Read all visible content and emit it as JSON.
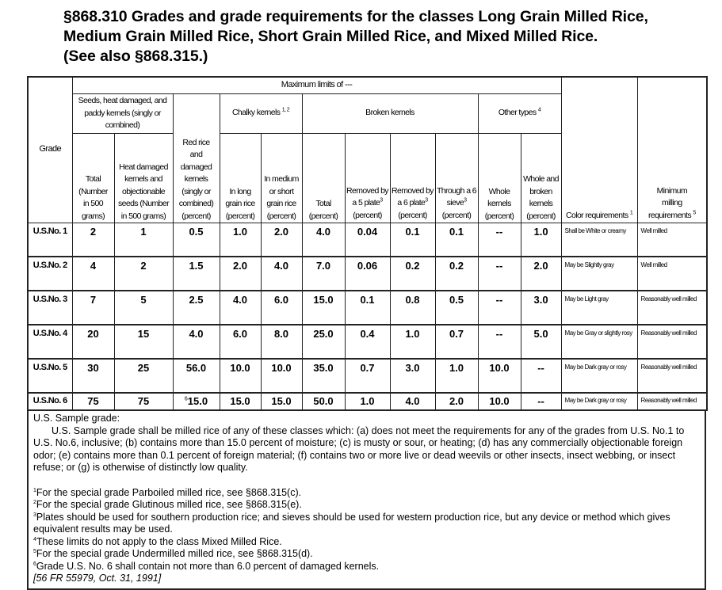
{
  "title": {
    "lines": [
      "§868.310 Grades and grade requirements for the classes Long Grain Milled Rice,",
      "Medium Grain Milled Rice, Short Grain Milled Rice, and Mixed Milled Rice.",
      "(See also §868.315.)"
    ]
  },
  "table": {
    "grade_header": "Grade",
    "max_limits_header": "Maximum limits of ---",
    "color_header": {
      "text": "Color requirements",
      "sup": "1"
    },
    "milling_header": {
      "text": "Minimum milling requirements",
      "sup": "5"
    },
    "groups": {
      "seeds": "Seeds, heat damaged, and paddy kernels (singly or combined)",
      "red_rice": "Red rice and damaged kernels (singly or combined) (percent)",
      "chalky": {
        "text": "Chalky kernels",
        "sup": "1, 2"
      },
      "broken": "Broken kernels",
      "other": {
        "text": "Other types",
        "sup": "4"
      }
    },
    "subheaders": {
      "seeds_total": "Total (Number in 500 grams)",
      "heat_damaged": "Heat damaged kernels and objectionable seeds (Number in 500 grams)",
      "chalky_long": "In long grain rice (percent)",
      "chalky_medium": "In medium or short grain rice (percent)",
      "broken_total": "Total (percent)",
      "removed_5": {
        "text": "Removed by a 5 plate",
        "sup": "3",
        "unit": "(percent)"
      },
      "removed_6": {
        "text": "Removed by a 6 plate",
        "sup": "3",
        "unit": "(percent)"
      },
      "through_6": {
        "text": "Through a 6 sieve",
        "sup": "3",
        "unit": "(percent)"
      },
      "whole_kernels": "Whole kernels (percent)",
      "whole_broken": "Whole and broken kernels (percent)"
    },
    "rows": [
      {
        "grade": "U.S.No. 1",
        "cells": [
          "2",
          "1",
          "0.5",
          "1.0",
          "2.0",
          "4.0",
          "0.04",
          "0.1",
          "0.1",
          "--",
          "1.0"
        ],
        "red_sup": "",
        "color": "Shall be White or creamy",
        "milling": "Well milled"
      },
      {
        "grade": "U.S.No. 2",
        "cells": [
          "4",
          "2",
          "1.5",
          "2.0",
          "4.0",
          "7.0",
          "0.06",
          "0.2",
          "0.2",
          "--",
          "2.0"
        ],
        "red_sup": "",
        "color": "May be Slightly gray",
        "milling": "Well milled"
      },
      {
        "grade": "U.S.No. 3",
        "cells": [
          "7",
          "5",
          "2.5",
          "4.0",
          "6.0",
          "15.0",
          "0.1",
          "0.8",
          "0.5",
          "--",
          "3.0"
        ],
        "red_sup": "",
        "color": "May be Light gray",
        "milling": "Reasonably well milled"
      },
      {
        "grade": "U.S.No. 4",
        "cells": [
          "20",
          "15",
          "4.0",
          "6.0",
          "8.0",
          "25.0",
          "0.4",
          "1.0",
          "0.7",
          "--",
          "5.0"
        ],
        "red_sup": "",
        "color": "May be Gray or slightly rosy",
        "milling": "Reasonably well milled"
      },
      {
        "grade": "U.S.No. 5",
        "cells": [
          "30",
          "25",
          "56.0",
          "10.0",
          "10.0",
          "35.0",
          "0.7",
          "3.0",
          "1.0",
          "10.0",
          "--"
        ],
        "red_sup": "",
        "color": "May be Dark gray or rosy",
        "milling": "Reasonably well milled"
      },
      {
        "grade": "U.S.No. 6",
        "cells": [
          "75",
          "75",
          "15.0",
          "15.0",
          "15.0",
          "50.0",
          "1.0",
          "4.0",
          "2.0",
          "10.0",
          "--"
        ],
        "red_sup": "6",
        "color": "May be Dark gray or rosy",
        "milling": "Reasonably well milled"
      }
    ]
  },
  "notes": {
    "sample_heading": "U.S. Sample grade:",
    "sample_text": "U.S. Sample grade shall be milled rice of any of these classes which: (a) does not meet the requirements for any of the grades from U.S. No.1 to U.S. No.6, inclusive; (b) contains more than 15.0 percent of moisture; (c) is musty or sour, or heating; (d) has any commercially objectionable foreign odor; (e) contains more than 0.1 percent of foreign material; (f) contains two or more live or dead weevils or other insects, insect webbing, or insect refuse; or (g) is otherwise of distinctly low quality.",
    "footnotes": [
      {
        "marker": "1",
        "text": "For the special grade Parboiled milled rice, see §868.315(c)."
      },
      {
        "marker": "2",
        "text": "For the special grade Glutinous milled rice, see §868.315(e)."
      },
      {
        "marker": "3",
        "text": "Plates should be used for southern production rice; and sieves should be used for western production rice, but any device or method which gives equivalent results may be used."
      },
      {
        "marker": "4",
        "text": "These limits do not apply to the class Mixed Milled Rice."
      },
      {
        "marker": "5",
        "text": "For the special grade Undermilled milled rice, see §868.315(d)."
      },
      {
        "marker": "6",
        "text": "Grade U.S. No. 6 shall contain not more than 6.0 percent of damaged kernels."
      }
    ],
    "citation": "[56 FR 55979, Oct. 31, 1991]"
  }
}
